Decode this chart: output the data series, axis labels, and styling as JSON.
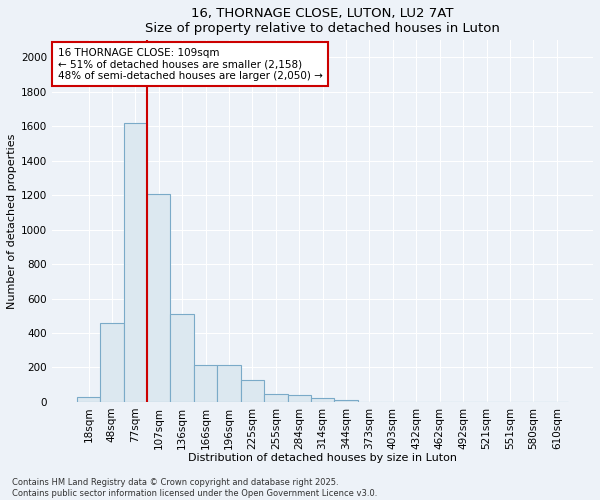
{
  "title": "16, THORNAGE CLOSE, LUTON, LU2 7AT",
  "subtitle": "Size of property relative to detached houses in Luton",
  "xlabel": "Distribution of detached houses by size in Luton",
  "ylabel": "Number of detached properties",
  "categories": [
    "18sqm",
    "48sqm",
    "77sqm",
    "107sqm",
    "136sqm",
    "166sqm",
    "196sqm",
    "225sqm",
    "255sqm",
    "284sqm",
    "314sqm",
    "344sqm",
    "373sqm",
    "403sqm",
    "432sqm",
    "462sqm",
    "492sqm",
    "521sqm",
    "551sqm",
    "580sqm",
    "610sqm"
  ],
  "values": [
    30,
    460,
    1620,
    1210,
    510,
    215,
    215,
    125,
    45,
    40,
    25,
    10,
    0,
    0,
    0,
    0,
    0,
    0,
    0,
    0,
    0
  ],
  "bar_color": "#dce8f0",
  "bar_edge_color": "#7aaac8",
  "vline_color": "#cc0000",
  "vline_index": 2.5,
  "annotation_text": "16 THORNAGE CLOSE: 109sqm\n← 51% of detached houses are smaller (2,158)\n48% of semi-detached houses are larger (2,050) →",
  "annotation_box_facecolor": "#ffffff",
  "annotation_box_edgecolor": "#cc0000",
  "ylim": [
    0,
    2100
  ],
  "yticks": [
    0,
    200,
    400,
    600,
    800,
    1000,
    1200,
    1400,
    1600,
    1800,
    2000
  ],
  "footer": "Contains HM Land Registry data © Crown copyright and database right 2025.\nContains public sector information licensed under the Open Government Licence v3.0.",
  "background_color": "#edf2f8",
  "grid_color": "#ffffff",
  "title_fontsize": 9.5,
  "axis_label_fontsize": 8,
  "tick_fontsize": 7.5,
  "annotation_fontsize": 7.5,
  "footer_fontsize": 6
}
